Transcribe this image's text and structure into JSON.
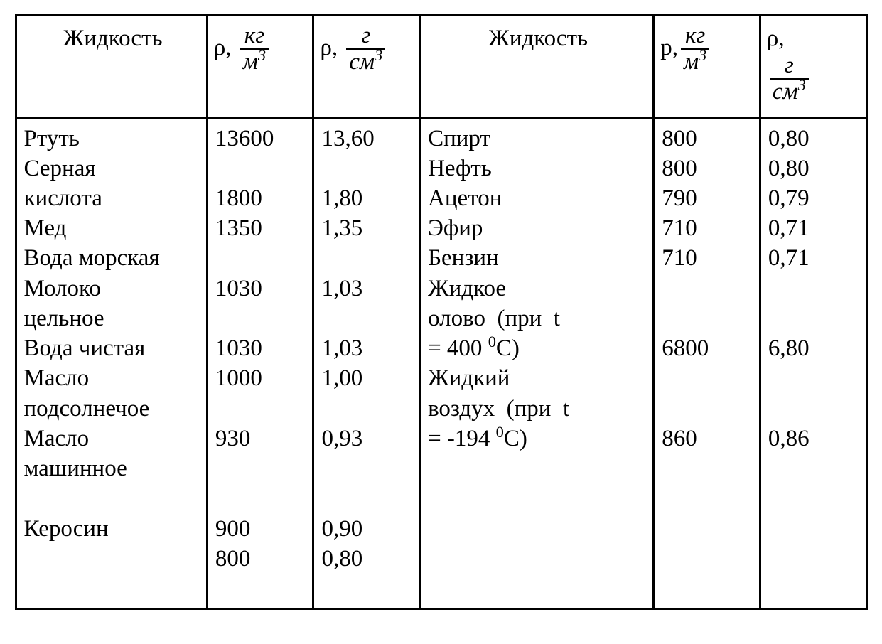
{
  "table": {
    "border_color": "#000000",
    "background_color": "#ffffff",
    "text_color": "#000000",
    "font_family": "Times New Roman",
    "font_size_pt": 25,
    "columns": [
      {
        "key": "name_left",
        "width_pct": 22.5
      },
      {
        "key": "rho_kg_m3_l",
        "width_pct": 12.5
      },
      {
        "key": "rho_g_cm3_l",
        "width_pct": 12.5
      },
      {
        "key": "name_right",
        "width_pct": 27.5
      },
      {
        "key": "rho_kg_m3_r",
        "width_pct": 12.5
      },
      {
        "key": "rho_g_cm3_r",
        "width_pct": 12.5
      }
    ],
    "headers": {
      "name_label": "Жидкость",
      "rho_symbol_greek": "ρ",
      "rho_symbol_latin": "р",
      "unit_kg": {
        "num": "кг",
        "den_base": "м",
        "den_sup": "3"
      },
      "unit_g": {
        "num": "г",
        "den_base": "см",
        "den_sup": "3"
      }
    },
    "left": {
      "lines": [
        {
          "label": "Ртуть",
          "v1": "13600",
          "v2": "13,60"
        },
        {
          "label": "Серная",
          "v1": "",
          "v2": ""
        },
        {
          "label": "кислота",
          "v1": "1800",
          "v2": "1,80"
        },
        {
          "label": "Мед",
          "v1": "1350",
          "v2": "1,35"
        },
        {
          "label": "Вода морская",
          "v1": "",
          "v2": ""
        },
        {
          "label": "Молоко",
          "v1": "1030",
          "v2": "1,03"
        },
        {
          "label": "цельное",
          "v1": "",
          "v2": ""
        },
        {
          "label": "Вода чистая",
          "v1": "1030",
          "v2": "1,03"
        },
        {
          "label": "Масло",
          "v1": "1000",
          "v2": "1,00"
        },
        {
          "label": "подсолнечое",
          "v1": "",
          "v2": ""
        },
        {
          "label": "Масло",
          "v1": "930",
          "v2": "0,93"
        },
        {
          "label": "машинное",
          "v1": "",
          "v2": ""
        },
        {
          "label": "",
          "v1": "",
          "v2": ""
        },
        {
          "label": "Керосин",
          "v1": "900",
          "v2": "0,90"
        },
        {
          "label": "",
          "v1": "800",
          "v2": "0,80"
        },
        {
          "label": "",
          "v1": "",
          "v2": ""
        }
      ]
    },
    "right": {
      "lines": [
        {
          "label": "Спирт",
          "v1": "800",
          "v2": "0,80"
        },
        {
          "label": "Нефть",
          "v1": "800",
          "v2": "0,80"
        },
        {
          "label": "Ацетон",
          "v1": "790",
          "v2": "0,79"
        },
        {
          "label": "Эфир",
          "v1": "710",
          "v2": "0,71"
        },
        {
          "label": "Бензин",
          "v1": "710",
          "v2": "0,71"
        },
        {
          "label": "Жидкое",
          "v1": "",
          "v2": ""
        },
        {
          "label_html": "олово&nbsp;&nbsp;(при&nbsp;&nbsp;t",
          "v1": "",
          "v2": ""
        },
        {
          "label_html": "= 400 <sup>0</sup>С)",
          "v1": "6800",
          "v2": "6,80"
        },
        {
          "label": "Жидкий",
          "v1": "",
          "v2": ""
        },
        {
          "label_html": "воздух&nbsp;&nbsp;(при&nbsp;&nbsp;t",
          "v1": "",
          "v2": ""
        },
        {
          "label_html": "= -194 <sup>0</sup>С)",
          "v1": "860",
          "v2": "0,86"
        }
      ]
    }
  }
}
